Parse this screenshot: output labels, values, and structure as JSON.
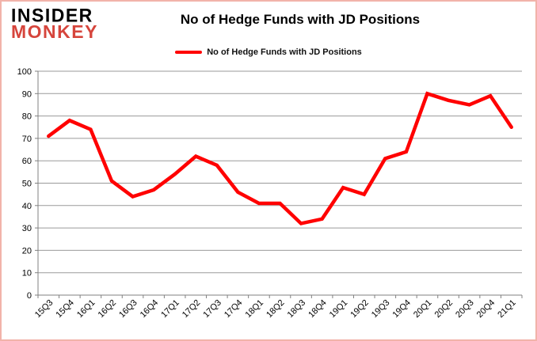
{
  "logo": {
    "line1": "INSIDER",
    "line2": "MONKEY"
  },
  "header": {
    "title": "No of Hedge Funds with JD Positions"
  },
  "legend": {
    "label": "No of Hedge Funds with JD Positions"
  },
  "colors": {
    "line": "#ff0000",
    "logo_red": "#d6453c",
    "grid": "#9a9a9a",
    "axis": "#808080",
    "border": "#f2b3aa",
    "text": "#000000"
  },
  "chart_data": {
    "type": "line",
    "title": "No of Hedge Funds with JD Positions",
    "xlabel": "",
    "ylabel": "",
    "ylim": [
      0,
      100
    ],
    "ytick_step": 10,
    "grid": "horizontal",
    "legend_position": "top",
    "categories": [
      "15Q3",
      "15Q4",
      "16Q1",
      "16Q2",
      "16Q3",
      "16Q4",
      "17Q1",
      "17Q2",
      "17Q3",
      "17Q4",
      "18Q1",
      "18Q2",
      "18Q3",
      "18Q4",
      "19Q1",
      "19Q2",
      "19Q3",
      "19Q4",
      "20Q1",
      "20Q2",
      "20Q3",
      "20Q4",
      "21Q1"
    ],
    "series": [
      {
        "name": "No of Hedge Funds with JD Positions",
        "color": "#ff0000",
        "values": [
          71,
          78,
          74,
          51,
          44,
          47,
          54,
          62,
          58,
          46,
          41,
          41,
          32,
          34,
          48,
          45,
          61,
          64,
          90,
          87,
          85,
          89,
          75
        ]
      }
    ]
  }
}
